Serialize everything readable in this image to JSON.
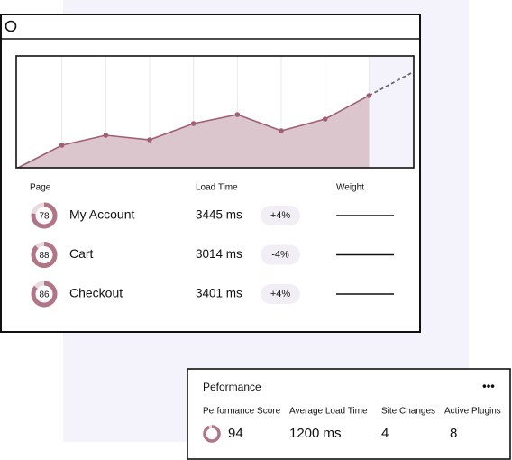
{
  "window": {
    "chart": {
      "values": [
        0,
        25,
        36,
        31,
        49,
        59,
        41,
        54,
        80,
        null
      ],
      "forecast": [
        null,
        null,
        null,
        null,
        null,
        null,
        null,
        null,
        80,
        106
      ],
      "color": "#a05f72"
    },
    "headers": [
      "Page",
      "Load Time",
      "Weight"
    ],
    "rows": [
      {
        "score": 78,
        "page": "My Account",
        "load": "3445 ms",
        "change": "+4%"
      },
      {
        "score": 88,
        "page": "Cart",
        "load": "3014 ms",
        "change": "-4%"
      },
      {
        "score": 86,
        "page": "Checkout",
        "load": "3401 ms",
        "change": "+4%"
      }
    ]
  },
  "card": {
    "title": "Peformance",
    "menu": "•••",
    "stats": [
      {
        "label": "Performance Score",
        "value": 94
      },
      {
        "label": "Average Load Time",
        "value": "1200 ms"
      },
      {
        "label": "Site Changes",
        "value": "4"
      },
      {
        "label": "Active Plugins",
        "value": "8"
      }
    ]
  }
}
